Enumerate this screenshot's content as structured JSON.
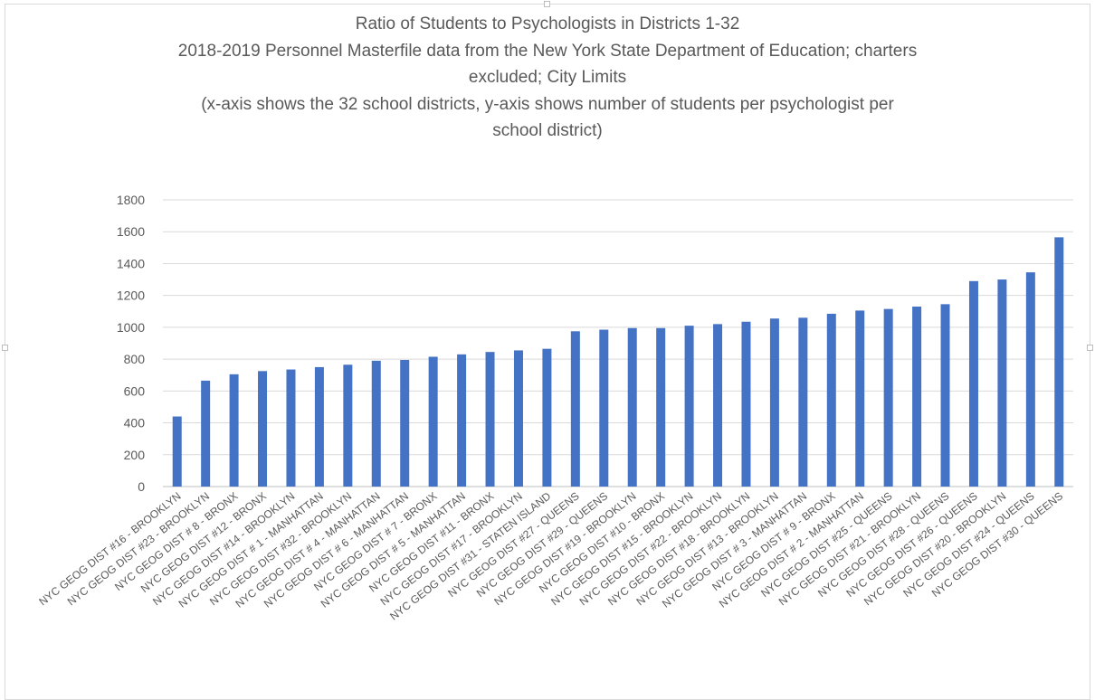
{
  "chart_data": {
    "type": "bar",
    "title_lines": [
      "Ratio of Students to Psychologists in Districts 1-32",
      "2018-2019 Personnel Masterfile data from the New York State Department of Education; charters",
      "excluded; City Limits",
      "(x-axis shows the 32 school districts, y-axis shows number of students per psychologist per",
      "school district)"
    ],
    "categories": [
      "NYC GEOG DIST #16 - BROOKLYN",
      "NYC GEOG DIST #23 - BROOKLYN",
      "NYC GEOG DIST # 8 - BRONX",
      "NYC GEOG DIST #12 - BRONX",
      "NYC GEOG DIST #14 - BROOKLYN",
      "NYC GEOG DIST # 1 - MANHATTAN",
      "NYC GEOG DIST #32 - BROOKLYN",
      "NYC GEOG DIST # 4 - MANHATTAN",
      "NYC GEOG DIST # 6 - MANHATTAN",
      "NYC GEOG DIST # 7 - BRONX",
      "NYC GEOG DIST # 5 - MANHATTAN",
      "NYC GEOG DIST #11 - BRONX",
      "NYC GEOG DIST #17 - BROOKLYN",
      "NYC GEOG DIST #31 - STATEN ISLAND",
      "NYC GEOG DIST #27 - QUEENS",
      "NYC GEOG DIST #29 - QUEENS",
      "NYC GEOG DIST #19 - BROOKLYN",
      "NYC GEOG DIST #10 - BRONX",
      "NYC GEOG DIST #15 - BROOKLYN",
      "NYC GEOG DIST #22 - BROOKLYN",
      "NYC GEOG DIST #18 - BROOKLYN",
      "NYC GEOG DIST #13 - BROOKLYN",
      "NYC GEOG DIST # 3 - MANHATTAN",
      "NYC GEOG DIST # 9 - BRONX",
      "NYC GEOG DIST # 2 - MANHATTAN",
      "NYC GEOG DIST #25 - QUEENS",
      "NYC GEOG DIST #21 - BROOKLYN",
      "NYC GEOG DIST #28 - QUEENS",
      "NYC GEOG DIST #26 - QUEENS",
      "NYC GEOG DIST #20 - BROOKLYN",
      "NYC GEOG DIST #24 - QUEENS",
      "NYC GEOG DIST #30 - QUEENS"
    ],
    "values": [
      440,
      665,
      705,
      725,
      735,
      750,
      765,
      790,
      795,
      815,
      830,
      845,
      855,
      865,
      975,
      985,
      995,
      995,
      1010,
      1020,
      1035,
      1055,
      1060,
      1085,
      1105,
      1115,
      1130,
      1145,
      1290,
      1300,
      1345,
      1565
    ],
    "ylim": [
      0,
      1800
    ],
    "yticks": [
      "0",
      "200",
      "400",
      "600",
      "800",
      "1000",
      "1200",
      "1400",
      "1600",
      "1800"
    ],
    "grid": true,
    "bar_color": "#4472C4"
  }
}
